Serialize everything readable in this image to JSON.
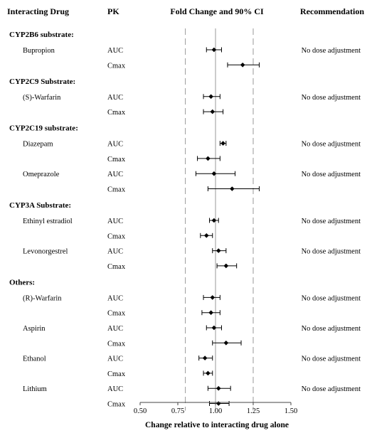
{
  "chart_data": {
    "type": "forest",
    "headers": {
      "drug": "Interacting Drug",
      "pk": "PK",
      "fold": "Fold Change and 90% CI",
      "recommendation": "Recommendation"
    },
    "xlabel": "Change relative to interacting drug alone",
    "xlim": [
      0.5,
      1.5
    ],
    "xticks": [
      "0.50",
      "0.75",
      "1.00",
      "1.25",
      "1.50"
    ],
    "reference_lines": {
      "solid": 1.0,
      "dashed": [
        0.8,
        1.25
      ]
    },
    "groups": [
      {
        "label": "CYP2B6 substrate:",
        "drugs": [
          {
            "name": "Bupropion",
            "recommendation": "No dose adjustment",
            "rows": [
              {
                "pk": "AUC",
                "est": 0.99,
                "lo": 0.94,
                "hi": 1.04
              },
              {
                "pk": "Cmax",
                "est": 1.18,
                "lo": 1.08,
                "hi": 1.29
              }
            ]
          }
        ]
      },
      {
        "label": "CYP2C9 Substrate:",
        "drugs": [
          {
            "name": "(S)-Warfarin",
            "recommendation": "No dose adjustment",
            "rows": [
              {
                "pk": "AUC",
                "est": 0.97,
                "lo": 0.92,
                "hi": 1.03
              },
              {
                "pk": "Cmax",
                "est": 0.98,
                "lo": 0.92,
                "hi": 1.05
              }
            ]
          }
        ]
      },
      {
        "label": "CYP2C19 substrate:",
        "drugs": [
          {
            "name": "Diazepam",
            "recommendation": "No dose adjustment",
            "rows": [
              {
                "pk": "AUC",
                "est": 1.05,
                "lo": 1.03,
                "hi": 1.07
              },
              {
                "pk": "Cmax",
                "est": 0.95,
                "lo": 0.88,
                "hi": 1.03
              }
            ]
          },
          {
            "name": "Omeprazole",
            "recommendation": "No dose adjustment",
            "rows": [
              {
                "pk": "AUC",
                "est": 0.99,
                "lo": 0.87,
                "hi": 1.13
              },
              {
                "pk": "Cmax",
                "est": 1.11,
                "lo": 0.95,
                "hi": 1.29
              }
            ]
          }
        ]
      },
      {
        "label": "CYP3A Substrate:",
        "drugs": [
          {
            "name": "Ethinyl estradiol",
            "recommendation": "No dose adjustment",
            "rows": [
              {
                "pk": "AUC",
                "est": 0.99,
                "lo": 0.96,
                "hi": 1.02
              },
              {
                "pk": "Cmax",
                "est": 0.94,
                "lo": 0.9,
                "hi": 0.98
              }
            ]
          },
          {
            "name": "Levonorgestrel",
            "recommendation": "No dose adjustment",
            "rows": [
              {
                "pk": "AUC",
                "est": 1.02,
                "lo": 0.98,
                "hi": 1.07
              },
              {
                "pk": "Cmax",
                "est": 1.07,
                "lo": 1.01,
                "hi": 1.14
              }
            ]
          }
        ]
      },
      {
        "label": "Others:",
        "drugs": [
          {
            "name": "(R)-Warfarin",
            "recommendation": "No dose adjustment",
            "rows": [
              {
                "pk": "AUC",
                "est": 0.98,
                "lo": 0.92,
                "hi": 1.03
              },
              {
                "pk": "Cmax",
                "est": 0.97,
                "lo": 0.91,
                "hi": 1.03
              }
            ]
          },
          {
            "name": "Aspirin",
            "recommendation": "No dose adjustment",
            "rows": [
              {
                "pk": "AUC",
                "est": 0.99,
                "lo": 0.94,
                "hi": 1.04
              },
              {
                "pk": "Cmax",
                "est": 1.07,
                "lo": 0.98,
                "hi": 1.17
              }
            ]
          },
          {
            "name": "Ethanol",
            "recommendation": "No dose adjustment",
            "rows": [
              {
                "pk": "AUC",
                "est": 0.93,
                "lo": 0.89,
                "hi": 0.98
              },
              {
                "pk": "Cmax",
                "est": 0.95,
                "lo": 0.92,
                "hi": 0.98
              }
            ]
          },
          {
            "name": "Lithium",
            "recommendation": "No dose adjustment",
            "rows": [
              {
                "pk": "AUC",
                "est": 1.02,
                "lo": 0.95,
                "hi": 1.1
              },
              {
                "pk": "Cmax",
                "est": 1.02,
                "lo": 0.96,
                "hi": 1.09
              }
            ]
          }
        ]
      }
    ]
  }
}
